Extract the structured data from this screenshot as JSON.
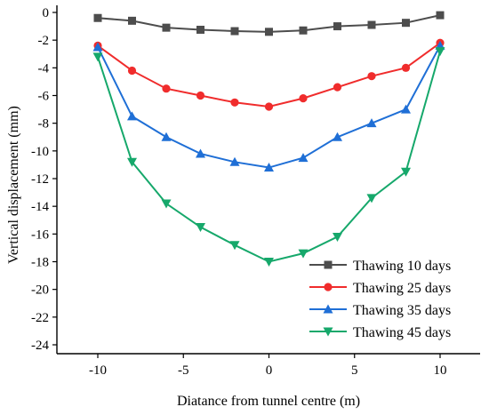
{
  "chart_data": {
    "type": "line",
    "xlabel": "Diatance from tunnel centre (m)",
    "ylabel": "Vertical displacement (mm)",
    "xlim": [
      -12,
      12
    ],
    "ylim": [
      -25.5,
      0
    ],
    "xticks": [
      -10,
      -5,
      0,
      5,
      10
    ],
    "yticks": [
      0,
      -2,
      -4,
      -6,
      -8,
      -10,
      -12,
      -14,
      -16,
      -18,
      -20,
      -22,
      -24
    ],
    "grid": false,
    "legend_position": "bottom-right",
    "series": [
      {
        "name": "Thawing 10 days",
        "color": "#4d4d4d",
        "marker": "square",
        "x": [
          -10,
          -8,
          -6,
          -4,
          -2,
          0,
          2,
          4,
          6,
          8,
          10
        ],
        "y": [
          -0.4,
          -0.6,
          -1.1,
          -1.25,
          -1.35,
          -1.4,
          -1.3,
          -1.0,
          -0.9,
          -0.75,
          -0.2
        ]
      },
      {
        "name": "Thawing 25 days",
        "color": "#f02c2c",
        "marker": "circle",
        "x": [
          -10,
          -8,
          -6,
          -4,
          -2,
          0,
          2,
          4,
          6,
          8,
          10
        ],
        "y": [
          -2.4,
          -4.2,
          -5.5,
          -6.0,
          -6.5,
          -6.8,
          -6.2,
          -5.4,
          -4.6,
          -4.0,
          -2.2
        ]
      },
      {
        "name": "Thawing 35 days",
        "color": "#1f6fd6",
        "marker": "triangle-up",
        "x": [
          -10,
          -8,
          -6,
          -4,
          -2,
          0,
          2,
          4,
          6,
          8,
          10
        ],
        "y": [
          -2.5,
          -7.5,
          -9.0,
          -10.2,
          -10.8,
          -11.2,
          -10.5,
          -9.0,
          -8.0,
          -7.0,
          -2.4
        ]
      },
      {
        "name": "Thawing 45 days",
        "color": "#16a86b",
        "marker": "triangle-down",
        "x": [
          -10,
          -8,
          -6,
          -4,
          -2,
          0,
          2,
          4,
          6,
          8,
          10
        ],
        "y": [
          -3.2,
          -10.8,
          -13.8,
          -15.5,
          -16.8,
          -18.0,
          -17.4,
          -16.2,
          -13.4,
          -11.5,
          -2.8
        ]
      }
    ]
  }
}
